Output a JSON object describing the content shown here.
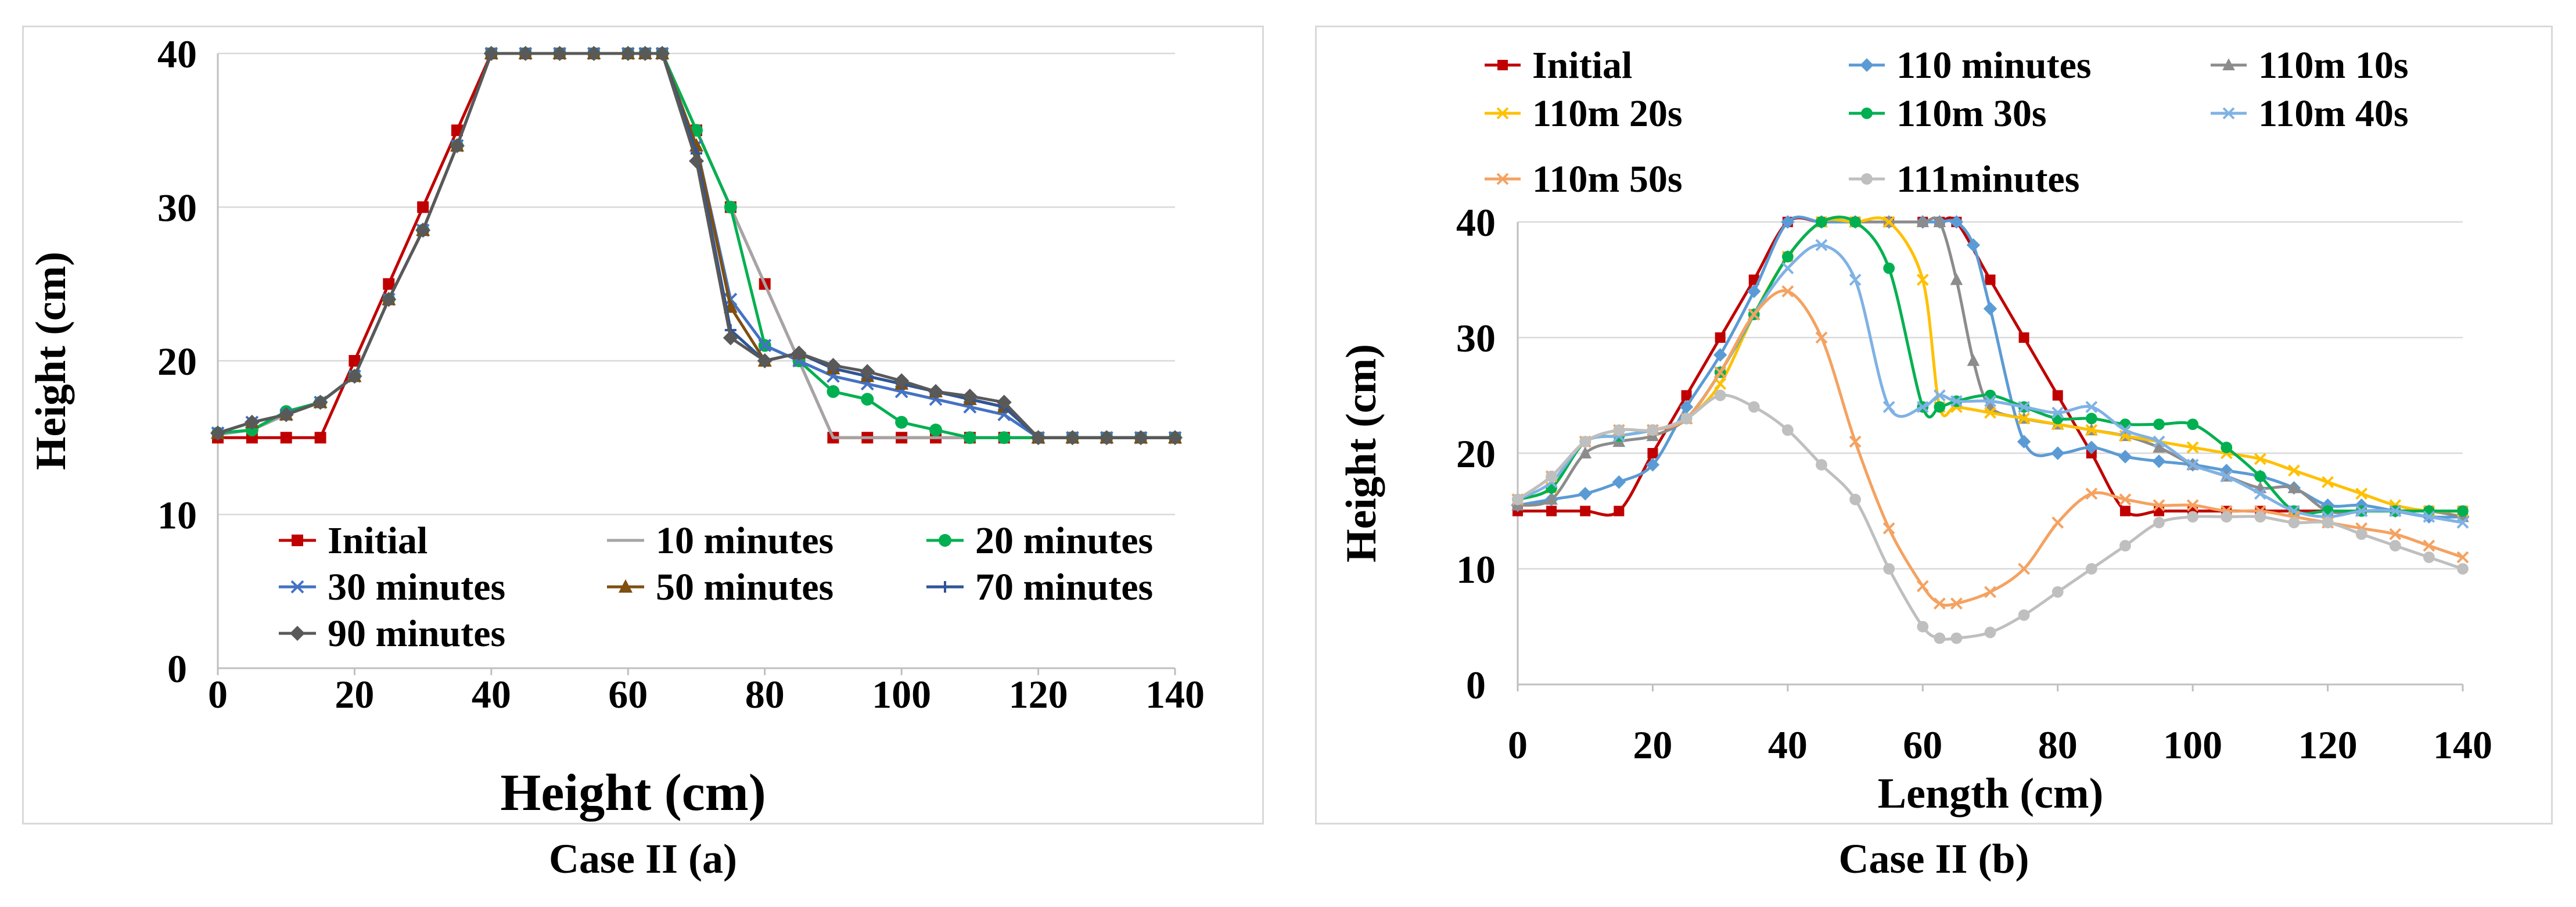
{
  "colors": {
    "initial": "#c00000",
    "m10": "#a5a5a5",
    "m20": "#00b050",
    "m30": "#4472c4",
    "m50": "#7f4f0f",
    "m70": "#2f5597",
    "m90": "#595959",
    "b110": "#5b9bd5",
    "b110_10": "#8c8c8c",
    "b110_20": "#ffc000",
    "b110_30": "#00b050",
    "b110_40": "#7fb2e5",
    "b110_50": "#f4a261",
    "b111": "#bfbfbf",
    "grid": "#d9d9d9"
  },
  "captions": {
    "a": "Case II (a)",
    "b": "Case II (b)"
  },
  "chart_data": [
    {
      "type": "line",
      "title": "",
      "caption": "Case II (a)",
      "xlabel": "Height (cm)",
      "ylabel": "Height (cm)",
      "xlim": [
        0,
        140
      ],
      "ylim": [
        0,
        40
      ],
      "xticks": [
        "0",
        "20",
        "40",
        "60",
        "80",
        "100",
        "120",
        "140"
      ],
      "yticks": [
        "0",
        "10",
        "20",
        "30",
        "40"
      ],
      "legend_position": "bottom-left inside",
      "series": [
        {
          "name": "Initial",
          "color": "#c00000",
          "marker": "square",
          "x": [
            0,
            5,
            10,
            15,
            20,
            25,
            30,
            35,
            40,
            45,
            50,
            55,
            60,
            62.5,
            65,
            70,
            75,
            80,
            85,
            90,
            95,
            100,
            105,
            110,
            115,
            120,
            125,
            130,
            135,
            140
          ],
          "y": [
            15,
            15,
            15,
            15,
            20,
            25,
            30,
            35,
            40,
            40,
            40,
            40,
            40,
            40,
            40,
            35,
            30,
            25,
            20,
            15,
            15,
            15,
            15,
            15,
            15,
            15,
            15,
            15,
            15,
            15
          ]
        },
        {
          "name": "10 minutes",
          "color": "#a5a5a5",
          "marker": "none",
          "x": [
            0,
            5,
            10,
            15,
            20,
            25,
            30,
            35,
            40,
            45,
            50,
            55,
            60,
            62.5,
            65,
            70,
            75,
            80,
            85,
            90,
            95,
            100,
            105,
            110,
            115,
            120,
            125,
            130,
            135,
            140
          ],
          "y": [
            15.2,
            15.5,
            16.5,
            17.3,
            19,
            24,
            28.5,
            34,
            40,
            40,
            40,
            40,
            40,
            40,
            40,
            35,
            30,
            25,
            20,
            15,
            15,
            15,
            15,
            15,
            15,
            15,
            15,
            15,
            15,
            15
          ]
        },
        {
          "name": "20 minutes",
          "color": "#00b050",
          "marker": "circle",
          "x": [
            0,
            5,
            10,
            15,
            20,
            25,
            30,
            35,
            40,
            45,
            50,
            55,
            60,
            62.5,
            65,
            70,
            75,
            80,
            85,
            90,
            95,
            100,
            105,
            110,
            115,
            120,
            125,
            130,
            135,
            140
          ],
          "y": [
            15.3,
            15.5,
            16.7,
            17.3,
            19,
            24,
            28.5,
            34,
            40,
            40,
            40,
            40,
            40,
            40,
            40,
            35,
            30,
            21,
            20,
            18,
            17.5,
            16,
            15.5,
            15,
            15,
            15,
            15,
            15,
            15,
            15
          ]
        },
        {
          "name": "30 minutes",
          "color": "#4472c4",
          "marker": "x",
          "x": [
            0,
            5,
            10,
            15,
            20,
            25,
            30,
            35,
            40,
            45,
            50,
            55,
            60,
            62.5,
            65,
            70,
            75,
            80,
            85,
            90,
            95,
            100,
            105,
            110,
            115,
            120,
            125,
            130,
            135,
            140
          ],
          "y": [
            15.3,
            16,
            16.5,
            17.3,
            19,
            24,
            28.5,
            34,
            40,
            40,
            40,
            40,
            40,
            40,
            40,
            34,
            24,
            21,
            20,
            19,
            18.5,
            18,
            17.5,
            17,
            16.5,
            15,
            15,
            15,
            15,
            15
          ]
        },
        {
          "name": "50 minutes",
          "color": "#7f4f0f",
          "marker": "triangle",
          "x": [
            0,
            5,
            10,
            15,
            20,
            25,
            30,
            35,
            40,
            45,
            50,
            55,
            60,
            62.5,
            65,
            70,
            75,
            80,
            85,
            90,
            95,
            100,
            105,
            110,
            115,
            120,
            125,
            130,
            135,
            140
          ],
          "y": [
            15.3,
            16,
            16.5,
            17.3,
            19,
            24,
            28.5,
            34,
            40,
            40,
            40,
            40,
            40,
            40,
            40,
            34,
            23.5,
            20,
            20.5,
            19.5,
            19,
            18.5,
            18,
            17.5,
            17,
            15,
            15,
            15,
            15,
            15
          ]
        },
        {
          "name": "70 minutes",
          "color": "#2f5597",
          "marker": "plus",
          "x": [
            0,
            5,
            10,
            15,
            20,
            25,
            30,
            35,
            40,
            45,
            50,
            55,
            60,
            62.5,
            65,
            70,
            75,
            80,
            85,
            90,
            95,
            100,
            105,
            110,
            115,
            120,
            125,
            130,
            135,
            140
          ],
          "y": [
            15.3,
            16,
            16.5,
            17.3,
            19,
            24,
            28.5,
            34,
            40,
            40,
            40,
            40,
            40,
            40,
            40,
            33.5,
            22,
            20,
            20.5,
            19.5,
            19,
            18.5,
            18,
            17.5,
            17,
            15,
            15,
            15,
            15,
            15
          ]
        },
        {
          "name": "90 minutes",
          "color": "#595959",
          "marker": "diamond",
          "x": [
            0,
            5,
            10,
            15,
            20,
            25,
            30,
            35,
            40,
            45,
            50,
            55,
            60,
            62.5,
            65,
            70,
            75,
            80,
            85,
            90,
            95,
            100,
            105,
            110,
            115,
            120,
            125,
            130,
            135,
            140
          ],
          "y": [
            15.3,
            16,
            16.5,
            17.3,
            19,
            24,
            28.5,
            34,
            40,
            40,
            40,
            40,
            40,
            40,
            40,
            33,
            21.5,
            20,
            20.5,
            19.7,
            19.3,
            18.7,
            18,
            17.7,
            17.3,
            15,
            15,
            15,
            15,
            15
          ]
        }
      ]
    },
    {
      "type": "line",
      "title": "",
      "caption": "Case II (b)",
      "xlabel": "Length (cm)",
      "ylabel": "Height (cm)",
      "xlim": [
        0,
        140
      ],
      "ylim": [
        0,
        40
      ],
      "xticks": [
        "0",
        "20",
        "40",
        "60",
        "80",
        "100",
        "120",
        "140"
      ],
      "yticks": [
        "0",
        "10",
        "20",
        "30",
        "40"
      ],
      "legend_position": "top",
      "series": [
        {
          "name": "Initial",
          "color": "#c00000",
          "marker": "square",
          "x": [
            0,
            5,
            10,
            15,
            20,
            25,
            30,
            35,
            40,
            45,
            50,
            55,
            60,
            62.5,
            65,
            70,
            75,
            80,
            85,
            90,
            95,
            100,
            105,
            110,
            115,
            120,
            125,
            130,
            135,
            140
          ],
          "y": [
            15,
            15,
            15,
            15,
            20,
            25,
            30,
            35,
            40,
            40,
            40,
            40,
            40,
            40,
            40,
            35,
            30,
            25,
            20,
            15,
            15,
            15,
            15,
            15,
            15,
            15,
            15,
            15,
            15,
            15
          ]
        },
        {
          "name": "110 minutes",
          "color": "#5b9bd5",
          "marker": "diamond",
          "x": [
            0,
            5,
            10,
            15,
            20,
            25,
            30,
            35,
            40,
            45,
            50,
            55,
            60,
            62.5,
            65,
            67.5,
            70,
            75,
            80,
            85,
            90,
            95,
            100,
            105,
            110,
            115,
            120,
            125,
            130,
            135,
            140
          ],
          "y": [
            15.5,
            16,
            16.5,
            17.5,
            19,
            24,
            28.5,
            34,
            40,
            40,
            40,
            40,
            40,
            40,
            40,
            38,
            32.5,
            21,
            20,
            20.5,
            19.7,
            19.3,
            19,
            18.5,
            18,
            17,
            15.5,
            15.5,
            15,
            14.5,
            14.5
          ]
        },
        {
          "name": "110m 10s",
          "color": "#8c8c8c",
          "marker": "triangle",
          "x": [
            0,
            5,
            10,
            15,
            20,
            25,
            30,
            35,
            40,
            45,
            50,
            55,
            60,
            62.5,
            65,
            67.5,
            70,
            75,
            80,
            85,
            90,
            95,
            100,
            105,
            110,
            115,
            120,
            125,
            130,
            135,
            140
          ],
          "y": [
            15.5,
            16,
            20,
            21,
            21.5,
            23,
            27,
            32,
            37,
            40,
            40,
            40,
            40,
            40,
            35,
            28,
            24,
            23,
            22.5,
            22,
            21.5,
            20.5,
            19,
            18,
            17,
            17,
            15,
            15,
            15,
            15,
            14.5
          ]
        },
        {
          "name": "110m 20s",
          "color": "#ffc000",
          "marker": "x",
          "x": [
            0,
            5,
            10,
            15,
            20,
            25,
            30,
            35,
            40,
            45,
            50,
            55,
            60,
            62.5,
            65,
            70,
            75,
            80,
            85,
            90,
            95,
            100,
            105,
            110,
            115,
            120,
            125,
            130,
            135,
            140
          ],
          "y": [
            16,
            17,
            21,
            21.5,
            22,
            23,
            26,
            32,
            37,
            40,
            40,
            40,
            35,
            24,
            24,
            23.5,
            23,
            22.5,
            22,
            21.5,
            21,
            20.5,
            20,
            19.5,
            18.5,
            17.5,
            16.5,
            15.5,
            15,
            15
          ]
        },
        {
          "name": "110m 30s",
          "color": "#00b050",
          "marker": "circle",
          "x": [
            0,
            5,
            10,
            15,
            20,
            25,
            30,
            35,
            40,
            45,
            50,
            55,
            60,
            62.5,
            65,
            70,
            75,
            80,
            85,
            90,
            95,
            100,
            105,
            110,
            115,
            120,
            125,
            130,
            135,
            140
          ],
          "y": [
            16,
            17,
            21,
            21.5,
            22,
            23,
            27,
            32,
            37,
            40,
            40,
            36,
            24,
            24,
            24.5,
            25,
            24,
            23,
            23,
            22.5,
            22.5,
            22.5,
            20.5,
            18,
            15,
            15,
            15,
            15,
            15,
            15
          ]
        },
        {
          "name": "110m 40s",
          "color": "#7fb2e5",
          "marker": "x",
          "x": [
            0,
            5,
            10,
            15,
            20,
            25,
            30,
            35,
            40,
            45,
            50,
            55,
            60,
            62.5,
            65,
            70,
            75,
            80,
            85,
            90,
            95,
            100,
            105,
            110,
            115,
            120,
            125,
            130,
            135,
            140
          ],
          "y": [
            16,
            17.5,
            21,
            21.5,
            22,
            23,
            27,
            32,
            36,
            38,
            35,
            24,
            24,
            25,
            24.5,
            24.5,
            24,
            23.5,
            24,
            22,
            21,
            19,
            18,
            16.5,
            15,
            14.5,
            15,
            15,
            14.5,
            14
          ]
        },
        {
          "name": "110m 50s",
          "color": "#f4a261",
          "marker": "x",
          "x": [
            0,
            5,
            10,
            15,
            20,
            25,
            30,
            35,
            40,
            45,
            50,
            55,
            60,
            62.5,
            65,
            70,
            75,
            80,
            85,
            90,
            95,
            100,
            105,
            110,
            115,
            120,
            125,
            130,
            135,
            140
          ],
          "y": [
            16,
            18,
            21,
            22,
            22,
            23,
            27,
            32,
            34,
            30,
            21,
            13.5,
            8.5,
            7,
            7,
            8,
            10,
            14,
            16.5,
            16,
            15.5,
            15.5,
            15,
            15,
            14.5,
            14,
            13.5,
            13,
            12,
            11
          ]
        },
        {
          "name": "111minutes",
          "color": "#bfbfbf",
          "marker": "circle",
          "x": [
            0,
            5,
            10,
            15,
            20,
            25,
            30,
            35,
            40,
            45,
            50,
            55,
            60,
            62.5,
            65,
            70,
            75,
            80,
            85,
            90,
            95,
            100,
            105,
            110,
            115,
            120,
            125,
            130,
            135,
            140
          ],
          "y": [
            16,
            18,
            21,
            22,
            22,
            23,
            25,
            24,
            22,
            19,
            16,
            10,
            5,
            4,
            4,
            4.5,
            6,
            8,
            10,
            12,
            14,
            14.5,
            14.5,
            14.5,
            14,
            14,
            13,
            12,
            11,
            10
          ]
        }
      ]
    }
  ]
}
